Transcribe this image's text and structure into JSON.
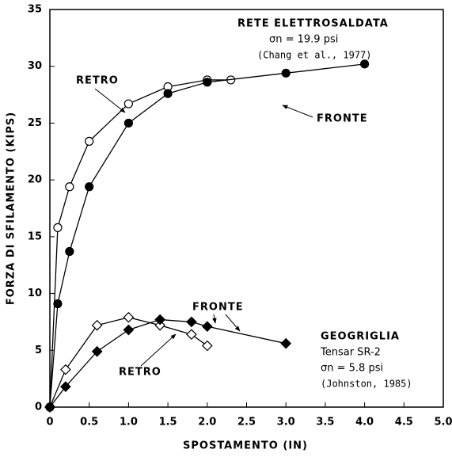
{
  "chart_data": {
    "type": "line",
    "xlabel": "SPOSTAMENTO (IN)",
    "ylabel": "FORZA DI SFILAMENTO (KIPS)",
    "xlim": [
      0,
      5
    ],
    "ylim": [
      0,
      35
    ],
    "xticks": [
      0,
      0.5,
      {
        "value": 1,
        "label": "1.0"
      },
      1.5,
      {
        "value": 2,
        "label": "2.0"
      },
      2.5,
      {
        "value": 3,
        "label": "3.0"
      },
      3.5,
      {
        "value": 4,
        "label": "4.0"
      },
      4.5,
      {
        "value": 5,
        "label": "5.0"
      }
    ],
    "yticks": [
      0,
      5,
      10,
      15,
      20,
      25,
      30,
      35
    ],
    "annotations": [
      "RETE ELETTROSALDATA",
      "σn = 19.9 psi",
      "(Chang et al., 1977)",
      "RETRO",
      "FRONTE",
      "FRONTE",
      "RETRO",
      "GEOGRIGLIA",
      "Tensar SR-2",
      "σn = 5.8 psi",
      "(Johnston, 1985)"
    ],
    "series": [
      {
        "color": "#000",
        "marker": "open-circle",
        "x": [
          0,
          0.1,
          0.25,
          0.5,
          1.0,
          1.5,
          2.0,
          2.3
        ],
        "values": [
          0,
          15.8,
          19.4,
          23.4,
          26.7,
          28.2,
          28.8,
          28.8
        ]
      },
      {
        "color": "#000",
        "marker": "filled-circle",
        "x": [
          0,
          0.1,
          0.25,
          0.5,
          1.0,
          1.5,
          2.0,
          3.0,
          4.0
        ],
        "values": [
          0,
          9.1,
          13.7,
          19.4,
          25.0,
          27.6,
          28.6,
          29.4,
          30.2
        ]
      },
      {
        "color": "#000",
        "marker": "open-diamond",
        "x": [
          0,
          0.2,
          0.6,
          1.0,
          1.4,
          1.8,
          2.0
        ],
        "values": [
          0,
          3.3,
          7.2,
          7.9,
          7.2,
          6.4,
          5.4
        ]
      },
      {
        "color": "#000",
        "marker": "filled-diamond",
        "x": [
          0,
          0.2,
          0.6,
          1.0,
          1.4,
          1.8,
          2.0,
          3.0
        ],
        "values": [
          0,
          1.8,
          4.9,
          6.8,
          7.7,
          7.5,
          7.1,
          5.6
        ]
      }
    ]
  }
}
